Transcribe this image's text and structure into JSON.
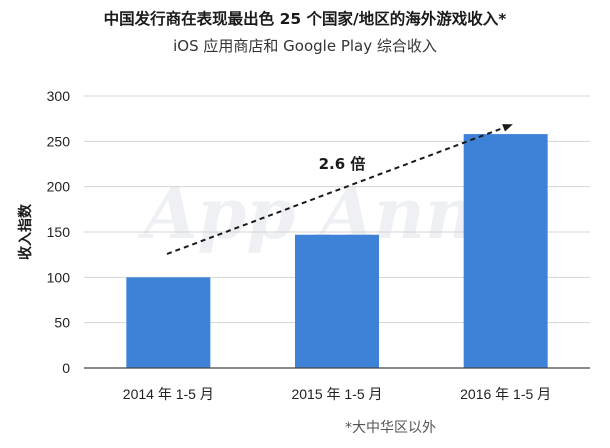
{
  "chart_data": {
    "type": "bar",
    "title": "中国发行商在表现最出色 25 个国家/地区的海外游戏收入*",
    "subtitle": "iOS 应用商店和 Google Play 综合收入",
    "ylabel": "收入指数",
    "xlabel": "",
    "categories": [
      "2014 年 1-5 月",
      "2015 年 1-5 月",
      "2016 年 1-5 月"
    ],
    "values": [
      100,
      147,
      258
    ],
    "ylim": [
      0,
      300
    ],
    "yticks": [
      "0",
      "50",
      "100",
      "150",
      "200",
      "250",
      "300"
    ],
    "grid": true,
    "bar_color": "#3d82d6",
    "annotation": "2.6 倍",
    "footnote": "*大中华区以外",
    "watermark": "App Annie"
  }
}
